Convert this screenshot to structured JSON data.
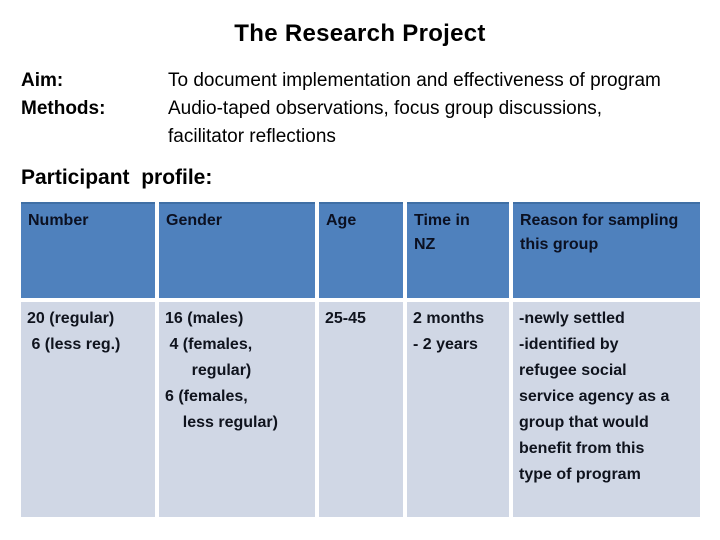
{
  "slide": {
    "title": "The Research Project",
    "aim_label": "Aim:",
    "methods_label": "Methods:",
    "aim_text": "To document implementation and effectiveness of program",
    "methods_text_line1": "Audio-taped observations, focus group discussions,",
    "methods_text_line2": "facilitator reflections",
    "profile_heading": "Participant  profile:"
  },
  "table": {
    "headers": [
      "Number",
      "Gender",
      "Age",
      "Time in\nNZ",
      "Reason for sampling\nthis group"
    ],
    "rows": [
      [
        "20 (regular)\n 6 (less reg.)",
        "16 (males)\n 4 (females,\n      regular)\n6 (females,\n    less regular)",
        "25-45",
        "2 months\n- 2 years",
        "-newly settled\n-identified by\nrefugee social\nservice agency as a\ngroup that would\nbenefit from this\ntype of program"
      ]
    ],
    "colors": {
      "header_bg": "#4f81bd",
      "header_border": "#3f6fa5",
      "header_text": "#0b1021",
      "row_bg": "#d0d7e5",
      "row_text": "#0f131d"
    }
  }
}
